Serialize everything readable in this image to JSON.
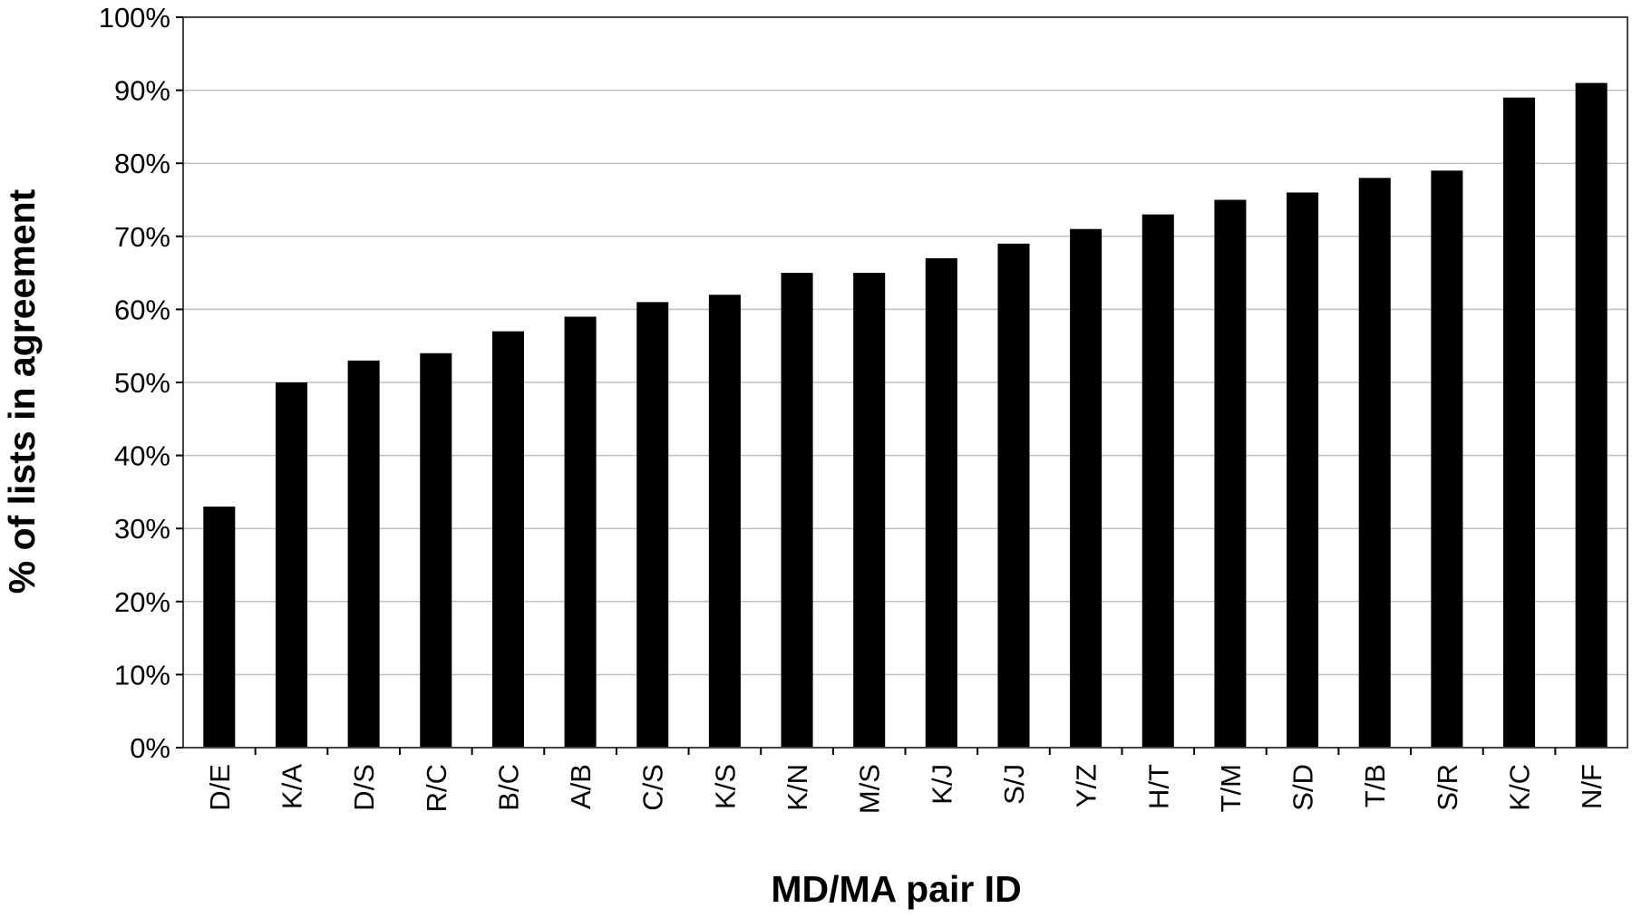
{
  "chart_data": {
    "type": "bar",
    "title": "",
    "xlabel": "MD/MA pair ID",
    "ylabel": "% of lists in agreement",
    "ylim": [
      0,
      100
    ],
    "yticks": [
      "0%",
      "10%",
      "20%",
      "30%",
      "40%",
      "50%",
      "60%",
      "70%",
      "80%",
      "90%",
      "100%"
    ],
    "categories": [
      "D/E",
      "K/A",
      "D/S",
      "R/C",
      "B/C",
      "A/B",
      "C/S",
      "K/S",
      "K/N",
      "M/S",
      "K/J",
      "S/J",
      "Y/Z",
      "H/T",
      "T/M",
      "S/D",
      "T/B",
      "S/R",
      "K/C",
      "N/F"
    ],
    "values": [
      33,
      50,
      53,
      54,
      57,
      59,
      61,
      62,
      65,
      65,
      67,
      69,
      71,
      73,
      75,
      76,
      78,
      79,
      89,
      91
    ],
    "grid": true,
    "bar_color": "#000000",
    "grid_color": "#c0c0c0"
  }
}
